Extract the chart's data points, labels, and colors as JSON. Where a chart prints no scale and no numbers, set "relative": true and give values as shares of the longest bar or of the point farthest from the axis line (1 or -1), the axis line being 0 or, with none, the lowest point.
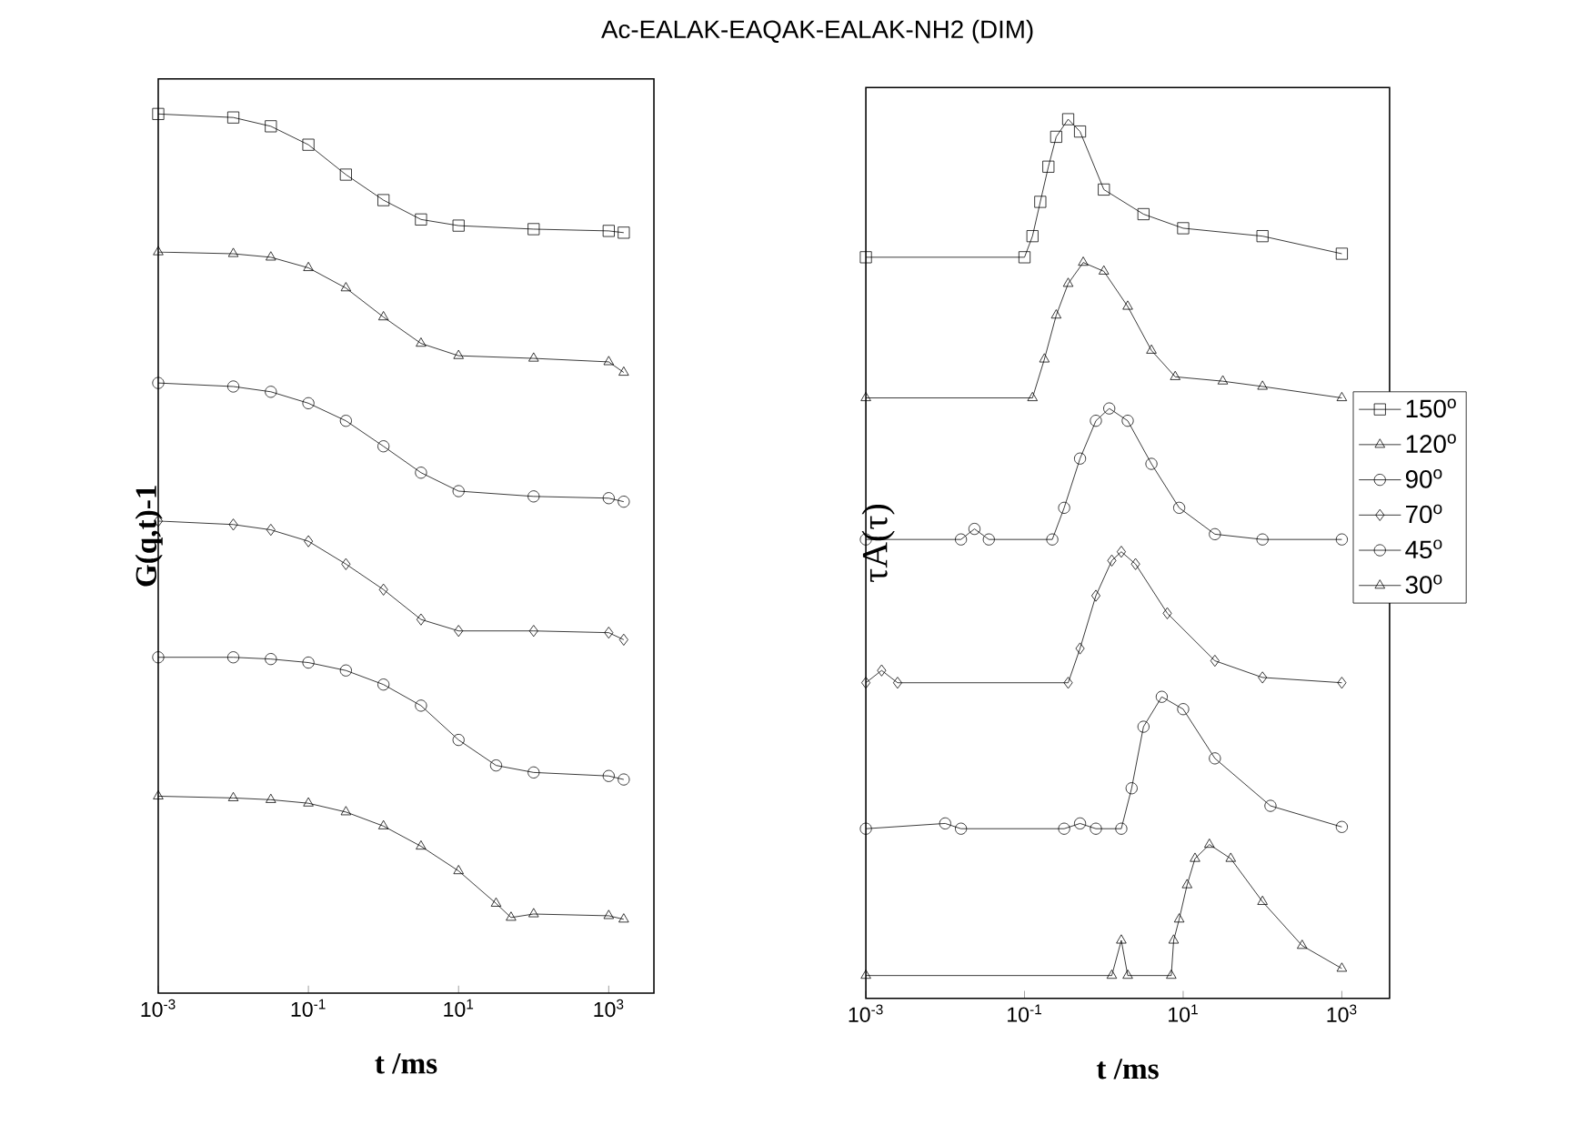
{
  "chart_data": [
    {
      "type": "line",
      "title": "Ac-EALAK-EAQAK-EALAK-NH2    (DIM)",
      "xlabel": "t /ms",
      "ylabel": "G(q,t)-1",
      "log": "x",
      "relative": true,
      "tick_labels": "x",
      "line_style": "solid",
      "xlim": [
        0.001,
        4000
      ],
      "xticks": [
        {
          "value": 0.001,
          "label": "10$^{-3}$"
        },
        {
          "value": 0.1,
          "label": "10$^{-1}$"
        },
        {
          "value": 10,
          "label": "10$^{1}$"
        },
        {
          "value": 1000,
          "label": "10$^{3}$"
        }
      ],
      "series": [
        {
          "color": "#000000",
          "marker": "square",
          "x": [
            0.001,
            0.01,
            0.0316,
            0.1,
            0.316,
            1,
            3.16,
            10,
            100,
            1000,
            1585
          ],
          "values": [
            1.0,
            0.996,
            0.986,
            0.965,
            0.931,
            0.902,
            0.88,
            0.873,
            0.869,
            0.867,
            0.865
          ]
        },
        {
          "color": "#000000",
          "marker": "triangle",
          "x": [
            0.001,
            0.01,
            0.0316,
            0.1,
            0.316,
            1,
            3.16,
            10,
            100,
            1000,
            1585
          ],
          "values": [
            0.843,
            0.841,
            0.837,
            0.825,
            0.802,
            0.769,
            0.739,
            0.725,
            0.722,
            0.718,
            0.706
          ]
        },
        {
          "color": "#000000",
          "marker": "circle",
          "x": [
            0.001,
            0.01,
            0.0316,
            0.1,
            0.316,
            1,
            3.16,
            10,
            100,
            1000,
            1585
          ],
          "values": [
            0.694,
            0.69,
            0.684,
            0.671,
            0.651,
            0.622,
            0.592,
            0.571,
            0.565,
            0.563,
            0.559
          ]
        },
        {
          "color": "#000000",
          "marker": "diamond",
          "x": [
            0.001,
            0.01,
            0.0316,
            0.1,
            0.316,
            1,
            3.16,
            10,
            100,
            1000,
            1585
          ],
          "values": [
            0.537,
            0.533,
            0.527,
            0.514,
            0.488,
            0.459,
            0.425,
            0.412,
            0.412,
            0.41,
            0.402
          ]
        },
        {
          "color": "#000000",
          "marker": "circle",
          "x": [
            0.001,
            0.01,
            0.0316,
            0.1,
            0.316,
            1,
            3.16,
            10,
            31.6,
            100,
            1000,
            1585
          ],
          "values": [
            0.382,
            0.382,
            0.38,
            0.376,
            0.367,
            0.351,
            0.327,
            0.288,
            0.259,
            0.251,
            0.247,
            0.243
          ]
        },
        {
          "color": "#000000",
          "marker": "triangle",
          "x": [
            0.001,
            0.01,
            0.0316,
            0.1,
            0.316,
            1,
            3.16,
            10,
            31.6,
            50,
            100,
            1000,
            1585
          ],
          "values": [
            0.224,
            0.222,
            0.22,
            0.216,
            0.206,
            0.19,
            0.167,
            0.139,
            0.102,
            0.086,
            0.09,
            0.088,
            0.084
          ]
        }
      ]
    },
    {
      "type": "line",
      "xlabel": "t /ms",
      "ylabel": "τA(τ)",
      "log": "x",
      "relative": true,
      "tick_labels": "x",
      "line_style": "solid",
      "legend": "right",
      "xlim": [
        0.001,
        4000
      ],
      "xticks": [
        {
          "value": 0.001,
          "label": "10$^{-3}$"
        },
        {
          "value": 0.1,
          "label": "10$^{-1}$"
        },
        {
          "value": 10,
          "label": "10$^{1}$"
        },
        {
          "value": 1000,
          "label": "10$^{3}$"
        }
      ],
      "series": [
        {
          "name": "150$^{o}$",
          "color": "#000000",
          "marker": "square",
          "x": [
            0.001,
            0.1,
            0.126,
            0.158,
            0.2,
            0.251,
            0.355,
            0.501,
            1,
            3.16,
            10,
            100,
            1000
          ],
          "values": [
            0.843,
            0.843,
            0.867,
            0.906,
            0.946,
            0.98,
            1.0,
            0.986,
            0.92,
            0.892,
            0.876,
            0.867,
            0.847
          ]
        },
        {
          "name": "120$^{o}$",
          "color": "#000000",
          "marker": "triangle",
          "x": [
            0.001,
            0.126,
            0.178,
            0.251,
            0.355,
            0.55,
            1,
            2,
            3.98,
            7.94,
            31.6,
            100,
            1000
          ],
          "values": [
            0.683,
            0.683,
            0.727,
            0.777,
            0.813,
            0.837,
            0.827,
            0.787,
            0.737,
            0.707,
            0.702,
            0.696,
            0.683
          ]
        },
        {
          "name": "90$^{o}$",
          "color": "#000000",
          "marker": "circle",
          "x": [
            0.001,
            0.0158,
            0.0234,
            0.0355,
            0.224,
            0.316,
            0.501,
            0.794,
            1.17,
            2,
            3.98,
            8.91,
            25.1,
            100,
            1000
          ],
          "values": [
            0.522,
            0.522,
            0.534,
            0.522,
            0.522,
            0.558,
            0.614,
            0.657,
            0.671,
            0.657,
            0.608,
            0.558,
            0.528,
            0.522,
            0.522
          ]
        },
        {
          "name": "70$^{o}$",
          "color": "#000000",
          "marker": "diamond",
          "x": [
            0.001,
            0.00158,
            0.00251,
            0.355,
            0.501,
            0.794,
            1.26,
            1.66,
            2.51,
            6.31,
            25.1,
            100,
            1000
          ],
          "values": [
            0.359,
            0.373,
            0.359,
            0.359,
            0.398,
            0.458,
            0.498,
            0.508,
            0.494,
            0.438,
            0.384,
            0.365,
            0.359
          ]
        },
        {
          "name": "45$^{o}$",
          "color": "#000000",
          "marker": "circle",
          "x": [
            0.001,
            0.01,
            0.0158,
            0.316,
            0.501,
            0.794,
            1.66,
            2.24,
            3.16,
            5.37,
            10,
            25.1,
            126,
            1000
          ],
          "values": [
            0.193,
            0.199,
            0.193,
            0.193,
            0.199,
            0.193,
            0.193,
            0.239,
            0.309,
            0.343,
            0.329,
            0.273,
            0.219,
            0.195
          ]
        },
        {
          "name": "30$^{o}$",
          "color": "#000000",
          "marker": "triangle",
          "x": [
            0.001,
            1.26,
            1.66,
            2,
            7.08,
            7.59,
            8.91,
            11.2,
            14.1,
            21.4,
            39.8,
            100,
            316,
            1000
          ],
          "values": [
            0.026,
            0.026,
            0.066,
            0.026,
            0.026,
            0.066,
            0.09,
            0.129,
            0.159,
            0.175,
            0.159,
            0.11,
            0.06,
            0.034
          ]
        }
      ]
    }
  ]
}
